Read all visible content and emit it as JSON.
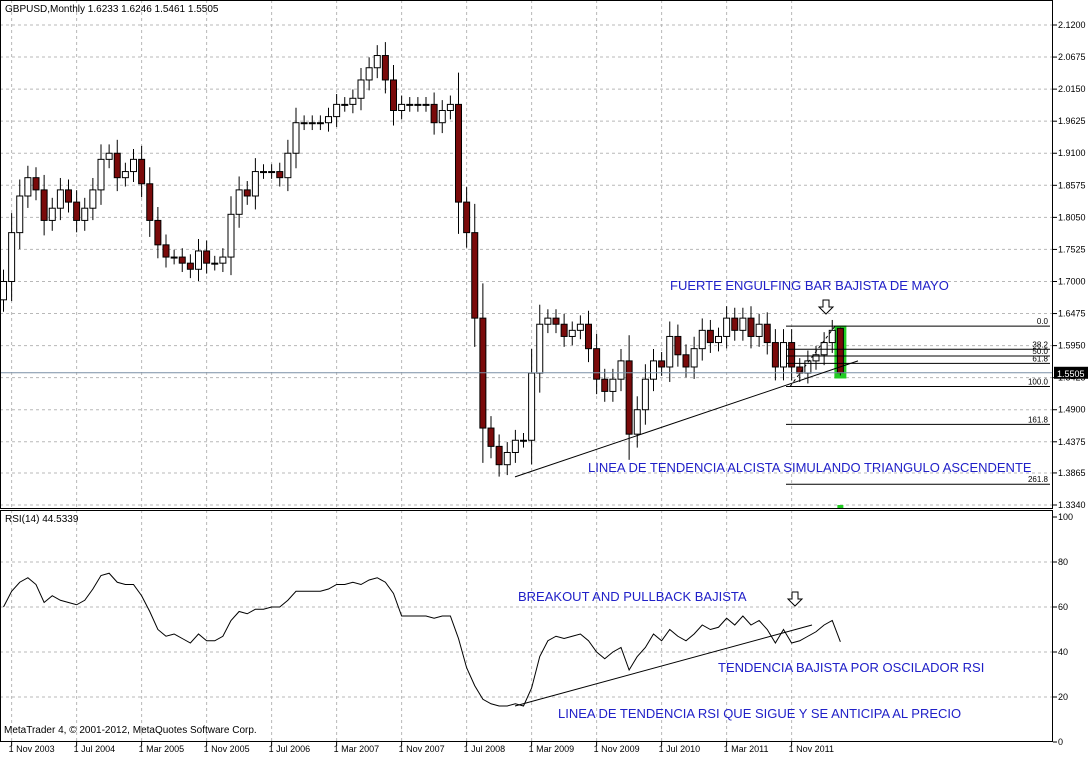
{
  "main_header": "GBPUSD,Monthly  1.6233 1.6246 1.5461 1.5505",
  "rsi_header": "RSI(14) 44.5339",
  "copyright": "MetaTrader 4, © 2001-2012, MetaQuotes Software Corp.",
  "price_label": "1.5505",
  "colors": {
    "bull": "#ffffff",
    "bear": "#7a0a0a",
    "wick": "#000000",
    "annotation": "#2020c8",
    "highlight": "#22cc22",
    "grid": "#b8b8b8",
    "price_box": "#000000"
  },
  "annotations": {
    "engulfing": "FUERTE ENGULFING BAR BAJISTA DE MAYO",
    "trendline": "LINEA DE TENDENCIA ALCISTA SIMULANDO TRIANGULO ASCENDENTE",
    "breakout": "BREAKOUT AND PULLBACK BAJISTA",
    "rsi_trend": "TENDENCIA BAJISTA POR OSCILADOR RSI",
    "rsi_line": "LINEA DE TENDENCIA RSI QUE SIGUE Y SE ANTICIPA AL PRECIO"
  },
  "fib_labels": [
    "0.0",
    "38.2",
    "50.0",
    "61.8",
    "100.0",
    "161.8",
    "261.8"
  ],
  "chart_data": [
    {
      "type": "candlestick",
      "title": "GBPUSD,Monthly",
      "timeframe": "Monthly",
      "ohlc_last": {
        "open": 1.6233,
        "high": 1.6246,
        "low": 1.5461,
        "close": 1.5505
      },
      "ylim": [
        1.334,
        2.13
      ],
      "y_ticks": [
        "2.1200",
        "2.0675",
        "2.0150",
        "1.9625",
        "1.9100",
        "1.8575",
        "1.8050",
        "1.7525",
        "1.7000",
        "1.6475",
        "1.5950",
        "1.5425",
        "1.4900",
        "1.4375",
        "1.3865",
        "1.3340"
      ],
      "x_ticks": [
        "1 Nov 2003",
        "1 Jul 2004",
        "1 Mar 2005",
        "1 Nov 2005",
        "1 Jul 2006",
        "1 Mar 2007",
        "1 Nov 2007",
        "1 Jul 2008",
        "1 Mar 2009",
        "1 Nov 2009",
        "1 Jul 2010",
        "1 Mar 2011",
        "1 Nov 2011"
      ],
      "closes": [
        1.7,
        1.78,
        1.84,
        1.87,
        1.85,
        1.8,
        1.82,
        1.85,
        1.83,
        1.8,
        1.82,
        1.85,
        1.9,
        1.91,
        1.87,
        1.88,
        1.9,
        1.86,
        1.8,
        1.76,
        1.74,
        1.74,
        1.73,
        1.72,
        1.75,
        1.73,
        1.73,
        1.74,
        1.81,
        1.85,
        1.84,
        1.88,
        1.88,
        1.88,
        1.87,
        1.91,
        1.96,
        1.96,
        1.96,
        1.96,
        1.97,
        1.99,
        1.99,
        2.0,
        2.03,
        2.05,
        2.07,
        2.03,
        1.98,
        1.99,
        1.99,
        1.99,
        1.99,
        1.96,
        1.98,
        1.99,
        1.83,
        1.78,
        1.64,
        1.46,
        1.43,
        1.4,
        1.42,
        1.44,
        1.44,
        1.55,
        1.63,
        1.64,
        1.63,
        1.61,
        1.62,
        1.63,
        1.59,
        1.54,
        1.52,
        1.54,
        1.57,
        1.45,
        1.49,
        1.54,
        1.57,
        1.56,
        1.61,
        1.58,
        1.56,
        1.59,
        1.62,
        1.6,
        1.61,
        1.64,
        1.62,
        1.64,
        1.61,
        1.63,
        1.6,
        1.56,
        1.6,
        1.56,
        1.55,
        1.57,
        1.58,
        1.6,
        1.62,
        1.5505
      ],
      "fibonacci": [
        {
          "level": "0.0",
          "price": 1.627
        },
        {
          "level": "38.2",
          "price": 1.589
        },
        {
          "level": "50.0",
          "price": 1.578
        },
        {
          "level": "61.8",
          "price": 1.566
        },
        {
          "level": "100.0",
          "price": 1.528
        },
        {
          "level": "161.8",
          "price": 1.466
        },
        {
          "level": "261.8",
          "price": 1.368
        }
      ],
      "trendline": [
        {
          "x": "1 Jan 2009",
          "y": 1.38
        },
        {
          "x": "1 Jun 2012",
          "y": 1.57
        }
      ]
    },
    {
      "type": "line",
      "title": "RSI(14) 44.5339",
      "series": [
        {
          "name": "RSI(14)",
          "values": [
            60,
            67,
            71,
            73,
            70,
            62,
            65,
            63,
            62,
            61,
            63,
            68,
            74,
            75,
            71,
            70,
            70,
            65,
            58,
            50,
            47,
            48,
            46,
            44,
            48,
            45,
            45,
            47,
            54,
            58,
            57,
            59,
            59,
            60,
            60,
            63,
            67,
            67,
            67,
            67,
            68,
            70,
            70,
            71,
            70,
            72,
            73,
            71,
            66,
            56,
            56,
            56,
            56,
            55,
            56,
            56,
            46,
            33,
            25,
            19,
            17,
            16,
            16,
            17,
            16,
            24,
            38,
            45,
            47,
            46,
            47,
            48,
            45,
            40,
            37,
            40,
            42,
            32,
            38,
            42,
            48,
            45,
            50,
            47,
            45,
            48,
            52,
            50,
            51,
            55,
            52,
            56,
            52,
            54,
            50,
            44,
            50,
            44,
            45,
            47,
            49,
            52,
            54,
            44.5339
          ]
        }
      ],
      "ylim": [
        0,
        100
      ],
      "y_ticks": [
        "100",
        "80",
        "60",
        "40",
        "20",
        "0"
      ],
      "levels": [
        20,
        40,
        60,
        80
      ],
      "trendline": [
        {
          "x": "1 Jan 2009",
          "y": 16
        },
        {
          "x": "1 Jun 2012",
          "y": 52
        }
      ]
    }
  ]
}
